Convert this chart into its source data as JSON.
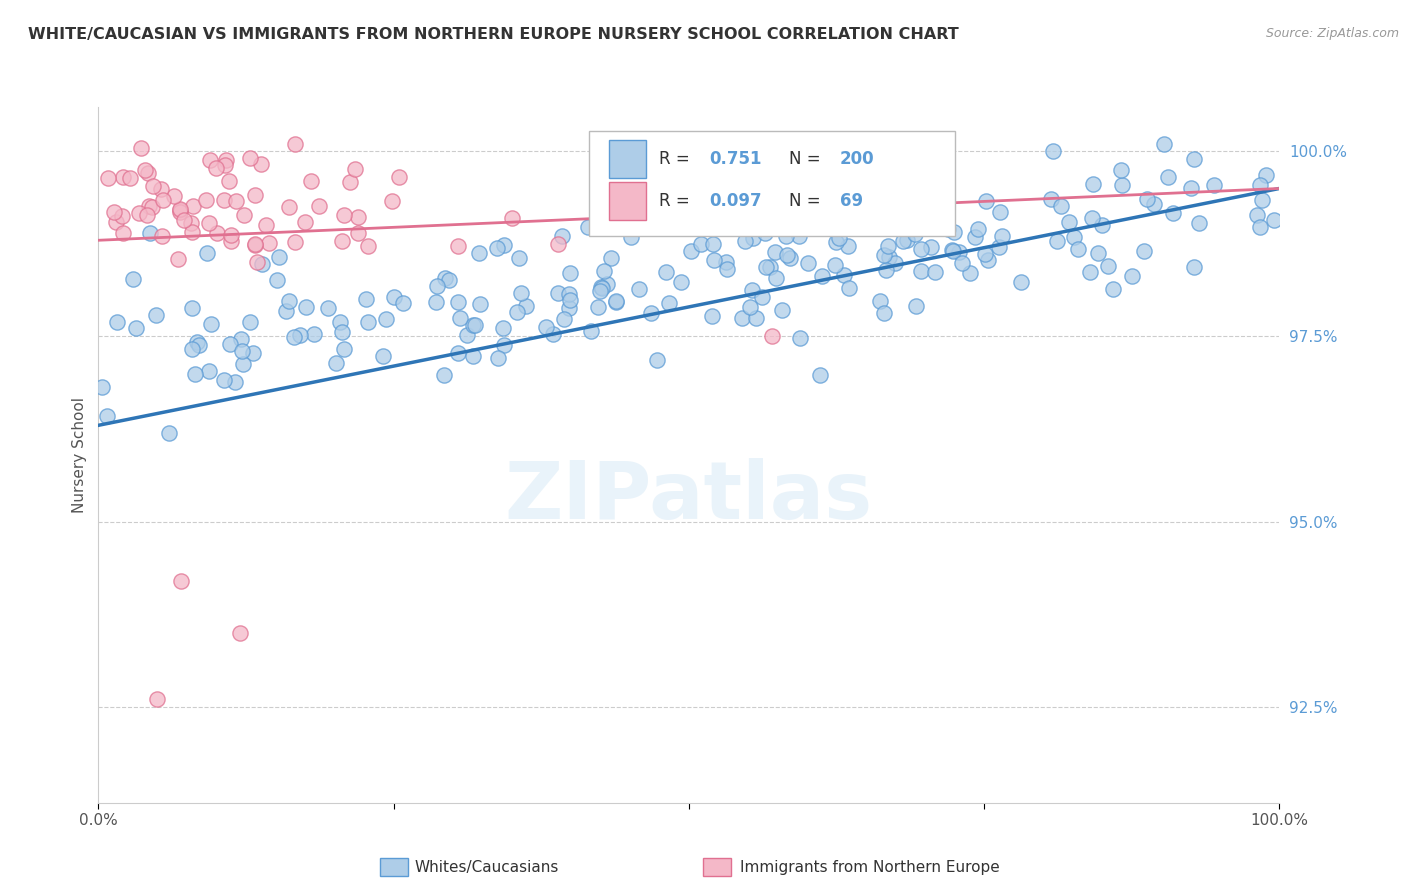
{
  "title": "WHITE/CAUCASIAN VS IMMIGRANTS FROM NORTHERN EUROPE NURSERY SCHOOL CORRELATION CHART",
  "source": "Source: ZipAtlas.com",
  "ylabel": "Nursery School",
  "right_yticks": [
    92.5,
    95.0,
    97.5,
    100.0
  ],
  "right_yticklabels": [
    "92.5%",
    "95.0%",
    "97.5%",
    "100.0%"
  ],
  "blue_R": 0.751,
  "blue_N": 200,
  "pink_R": 0.097,
  "pink_N": 69,
  "blue_color": "#aecde8",
  "blue_edge_color": "#5b9bd5",
  "blue_line_color": "#2e75b6",
  "pink_color": "#f4b8c8",
  "pink_edge_color": "#e07090",
  "pink_line_color": "#e07090",
  "watermark": "ZIPatlas",
  "legend_label_blue": "Whites/Caucasians",
  "legend_label_pink": "Immigrants from Northern Europe",
  "background_color": "#ffffff",
  "grid_color": "#cccccc",
  "xmin": 0.0,
  "xmax": 1.0,
  "ymin": 91.2,
  "ymax": 100.6,
  "blue_trend_x0": 0.0,
  "blue_trend_y0": 96.3,
  "blue_trend_x1": 1.0,
  "blue_trend_y1": 99.5,
  "pink_trend_x0": 0.0,
  "pink_trend_y0": 98.8,
  "pink_trend_x1": 1.0,
  "pink_trend_y1": 99.5
}
